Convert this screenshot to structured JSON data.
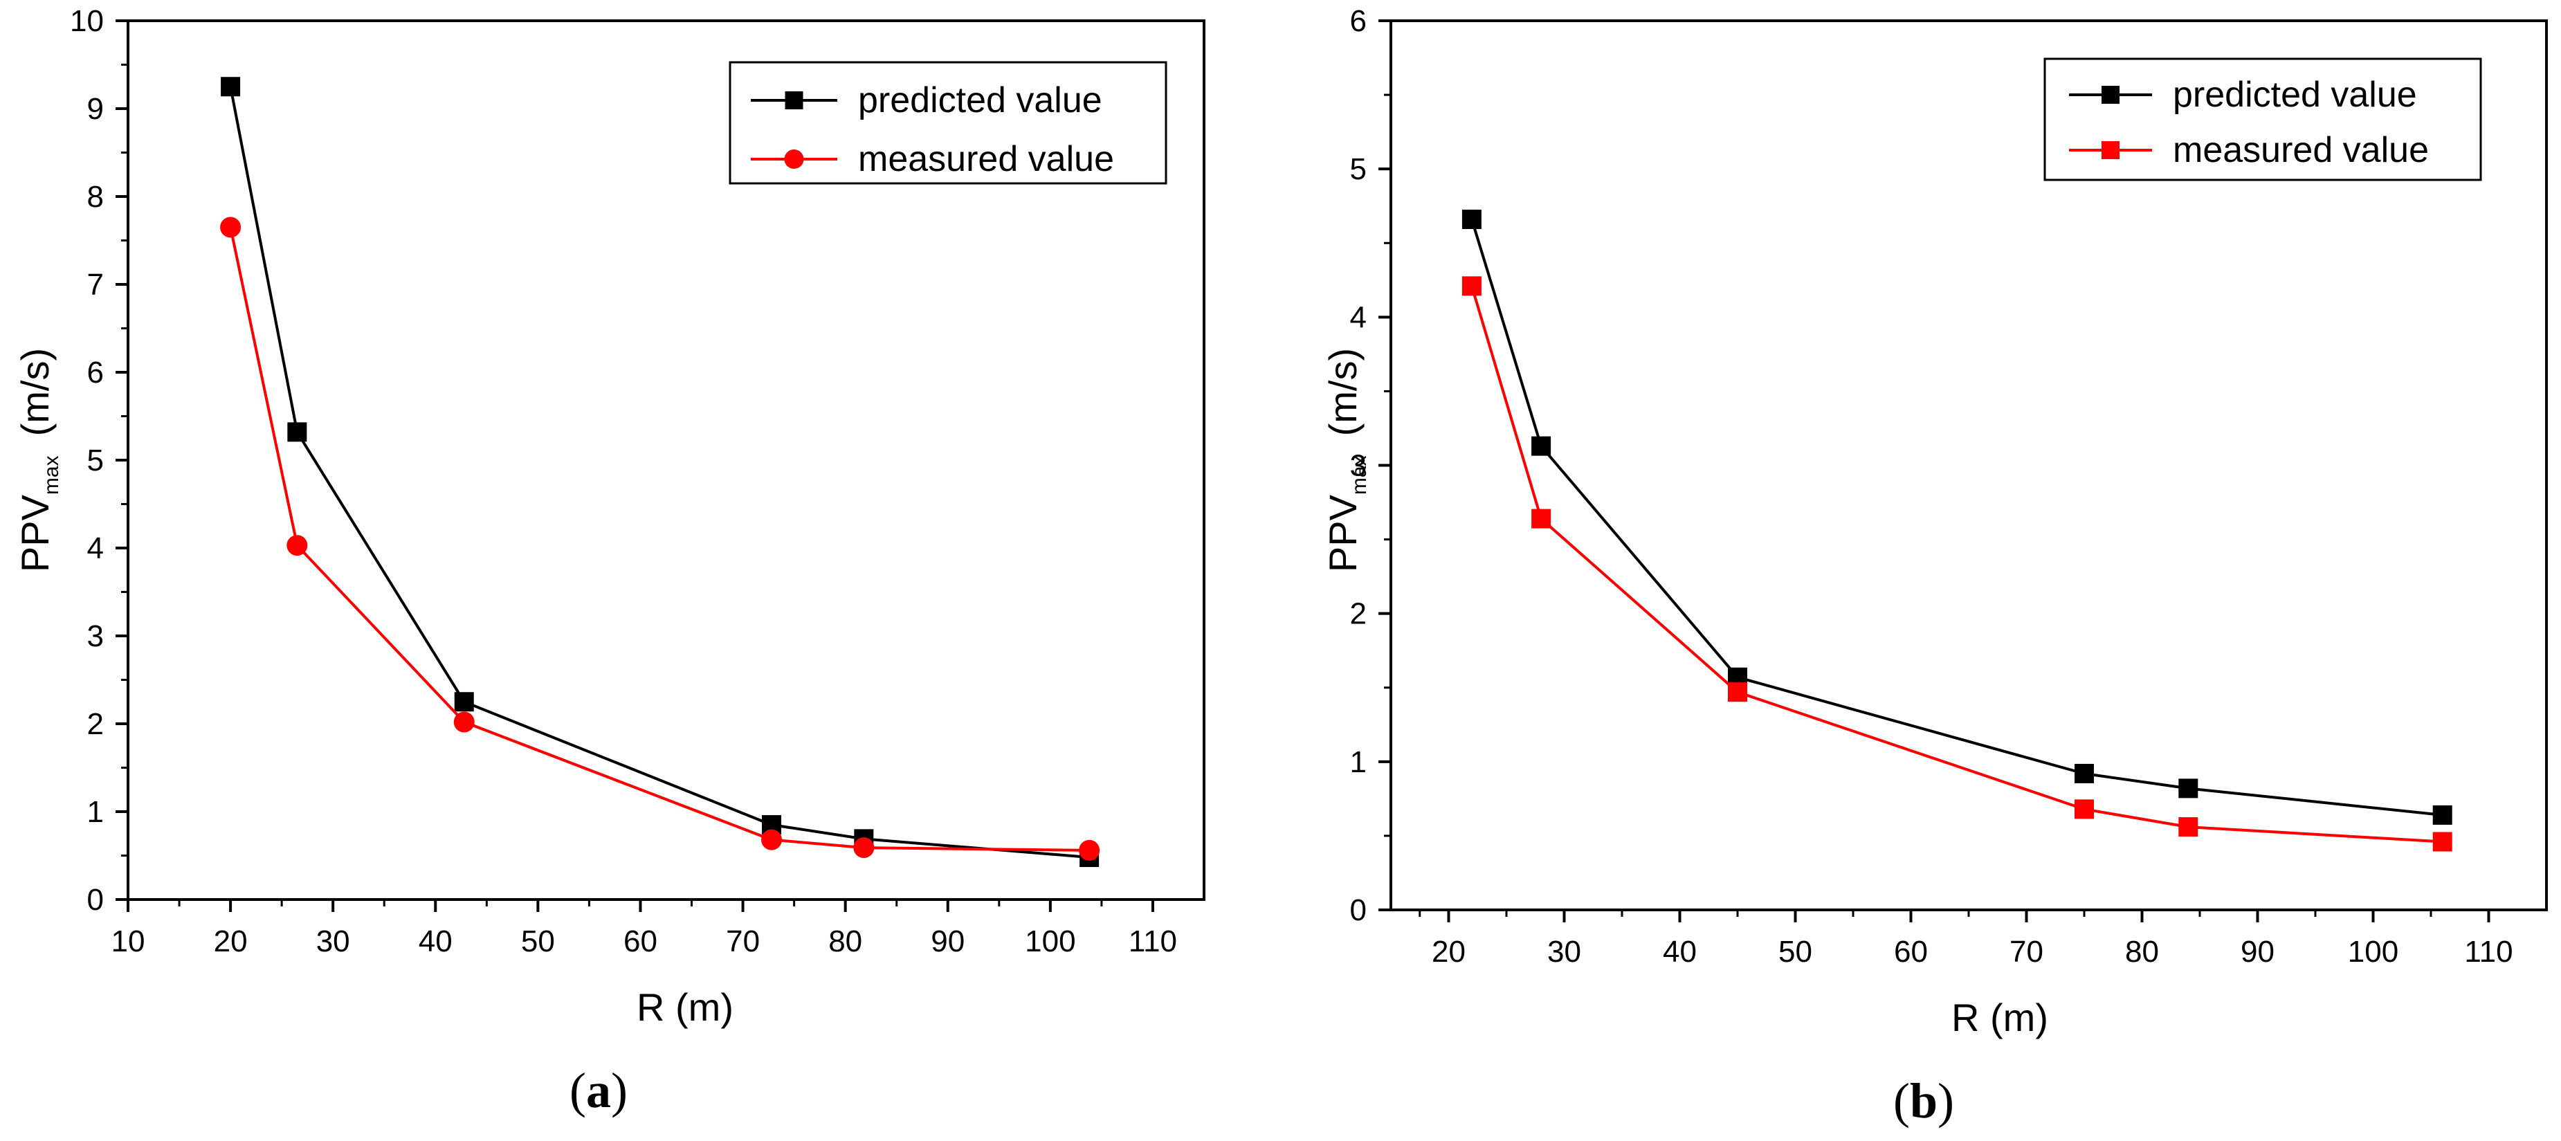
{
  "chart_data": [
    {
      "id": "a",
      "type": "line",
      "panel_label": "a",
      "title": "",
      "xlabel": "R (m)",
      "ylabel_main": "PPV",
      "ylabel_sub": "max",
      "ylabel_unit": "(m/s)",
      "xlim": [
        10,
        115
      ],
      "ylim": [
        0,
        10
      ],
      "xticks": [
        10,
        20,
        30,
        40,
        50,
        60,
        70,
        80,
        90,
        100,
        110
      ],
      "yticks": [
        0,
        1,
        2,
        3,
        4,
        5,
        6,
        7,
        8,
        9,
        10
      ],
      "legend_position": "top-right",
      "series": [
        {
          "name": "predicted value",
          "color": "#000000",
          "marker": "square",
          "x": [
            20,
            26.5,
            42.8,
            72.8,
            81.8,
            103.8
          ],
          "y": [
            9.25,
            5.32,
            2.25,
            0.85,
            0.69,
            0.48
          ]
        },
        {
          "name": "measured value",
          "color": "#ff0000",
          "marker": "circle",
          "x": [
            20,
            26.5,
            42.8,
            72.8,
            81.8,
            103.8
          ],
          "y": [
            7.65,
            4.03,
            2.02,
            0.68,
            0.59,
            0.56
          ]
        }
      ]
    },
    {
      "id": "b",
      "type": "line",
      "panel_label": "b",
      "title": "",
      "xlabel": "R (m)",
      "ylabel_main": "PPV",
      "ylabel_sub": "max",
      "ylabel_unit": "(m/s)",
      "xlim": [
        15,
        115
      ],
      "ylim": [
        0,
        6
      ],
      "xticks": [
        20,
        30,
        40,
        50,
        60,
        70,
        80,
        90,
        100,
        110
      ],
      "yticks": [
        0,
        1,
        2,
        3,
        4,
        5,
        6
      ],
      "legend_position": "top-right",
      "series": [
        {
          "name": "predicted value",
          "color": "#000000",
          "marker": "square",
          "x": [
            22,
            28,
            45,
            75,
            84,
            106
          ],
          "y": [
            4.66,
            3.13,
            1.57,
            0.92,
            0.82,
            0.64
          ]
        },
        {
          "name": "measured value",
          "color": "#ff0000",
          "marker": "square",
          "x": [
            22,
            28,
            45,
            75,
            84,
            106
          ],
          "y": [
            4.21,
            2.64,
            1.47,
            0.68,
            0.56,
            0.46
          ]
        }
      ]
    }
  ]
}
